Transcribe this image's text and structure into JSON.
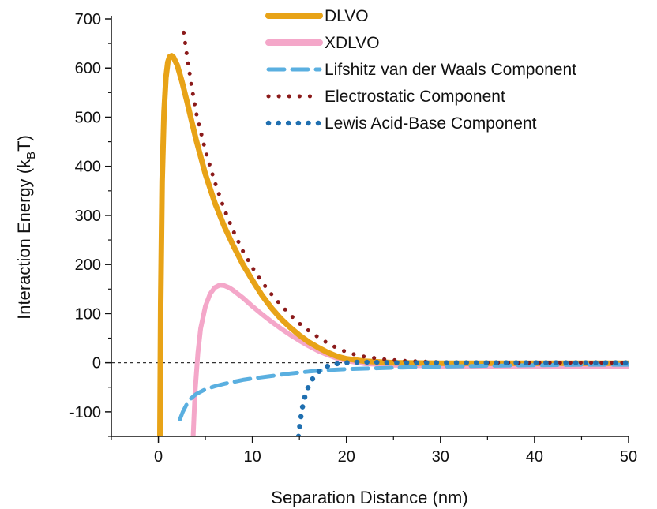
{
  "chart_data": {
    "type": "line",
    "title": "",
    "xlabel": "Separation Distance (nm)",
    "ylabel": "Interaction Energy (k",
    "ylabel_sub": "B",
    "ylabel_tail": "T)",
    "xlim": [
      -5,
      50
    ],
    "ylim": [
      -150,
      700
    ],
    "xticks": [
      0,
      10,
      20,
      30,
      40,
      50
    ],
    "yticks": [
      -100,
      0,
      100,
      200,
      300,
      400,
      500,
      600,
      700
    ],
    "zero_line": true,
    "legend_position": "top-right",
    "series": [
      {
        "name": "DLVO",
        "style": "solid",
        "color": "#E8A317",
        "x": [
          0.16,
          0.25,
          0.4,
          0.6,
          0.8,
          1.0,
          1.2,
          1.4,
          1.6,
          2.0,
          2.5,
          3.0,
          3.5,
          4.0,
          5.0,
          6.0,
          7.0,
          8.0,
          9.0,
          10.0,
          11.0,
          12.0,
          13.0,
          14.0,
          15.0,
          16.0,
          17.0,
          18.0,
          19.0,
          20.0,
          22.0,
          25.0,
          30.0,
          35.0,
          40.0,
          45.0,
          50.0
        ],
        "y": [
          -150,
          120,
          370,
          510,
          580,
          612,
          623,
          625,
          622,
          606,
          573,
          535,
          495,
          455,
          384,
          326,
          278,
          237,
          200,
          168,
          138,
          112,
          90,
          72,
          56,
          42,
          31,
          21,
          13,
          8,
          3,
          0,
          -1,
          -1,
          -1,
          -1,
          -1
        ]
      },
      {
        "name": "XDLVO",
        "style": "solid",
        "color": "#F4A7C9",
        "x": [
          3.7,
          3.9,
          4.2,
          4.5,
          5.0,
          5.5,
          6.0,
          6.5,
          7.0,
          7.5,
          8.0,
          9.0,
          10.0,
          11.0,
          12.0,
          13.0,
          14.0,
          15.0,
          16.0,
          17.0,
          18.0,
          19.0,
          20.0,
          22.0,
          25.0,
          30.0,
          35.0,
          40.0,
          45.0,
          50.0
        ],
        "y": [
          -150,
          -60,
          20,
          70,
          115,
          140,
          153,
          158,
          157,
          153,
          147,
          132,
          115,
          99,
          84,
          70,
          57,
          45,
          34,
          24,
          16,
          9,
          4,
          -2,
          -5,
          -7,
          -7,
          -7,
          -7,
          -7
        ]
      },
      {
        "name": "Lifshitz van der Waals Component",
        "style": "dashed",
        "color": "#5AAFE0",
        "x": [
          2.3,
          2.6,
          3.0,
          3.5,
          4.0,
          5.0,
          6.0,
          7.0,
          8.0,
          9.0,
          10.0,
          12.0,
          14.0,
          16.0,
          18.0,
          20.0,
          25.0,
          30.0,
          35.0,
          40.0,
          45.0,
          50.0
        ],
        "y": [
          -115,
          -100,
          -85,
          -72,
          -64,
          -54,
          -48,
          -43,
          -39,
          -35,
          -32,
          -27,
          -22,
          -18,
          -15,
          -13,
          -10,
          -8,
          -6,
          -5,
          -4,
          -4
        ]
      },
      {
        "name": "Electrostatic Component",
        "style": "dotted",
        "color": "#8B1A1A",
        "x": [
          2.7,
          3.0,
          3.5,
          4.0,
          5.0,
          6.0,
          7.0,
          8.0,
          9.0,
          10.0,
          11.0,
          12.0,
          13.0,
          14.0,
          15.0,
          16.0,
          17.0,
          18.0,
          19.0,
          20.0,
          21.0,
          22.0,
          24.0,
          26.0,
          30.0,
          35.0,
          40.0,
          45.0,
          50.0
        ],
        "y": [
          672,
          630,
          567,
          510,
          432,
          368,
          313,
          267,
          227,
          194,
          165,
          140,
          118,
          98,
          80,
          65,
          52,
          40,
          30,
          22,
          16,
          12,
          7,
          4,
          1,
          0,
          0,
          0,
          0
        ]
      },
      {
        "name": "Lewis Acid-Base Component",
        "style": "dotted",
        "color": "#1F6FB0",
        "x": [
          14.9,
          15.1,
          15.3,
          15.6,
          16.0,
          16.5,
          17.0,
          17.5,
          18.0,
          18.5,
          19.0,
          20.0,
          21.0,
          22.0,
          23.0,
          25.0,
          28.0,
          30.0,
          35.0,
          40.0,
          45.0,
          50.0
        ],
        "y": [
          -150,
          -118,
          -92,
          -68,
          -46,
          -30,
          -19,
          -12,
          -7,
          -4,
          -2,
          0,
          1,
          1,
          1,
          0,
          0,
          0,
          0,
          0,
          0,
          0
        ]
      }
    ]
  }
}
